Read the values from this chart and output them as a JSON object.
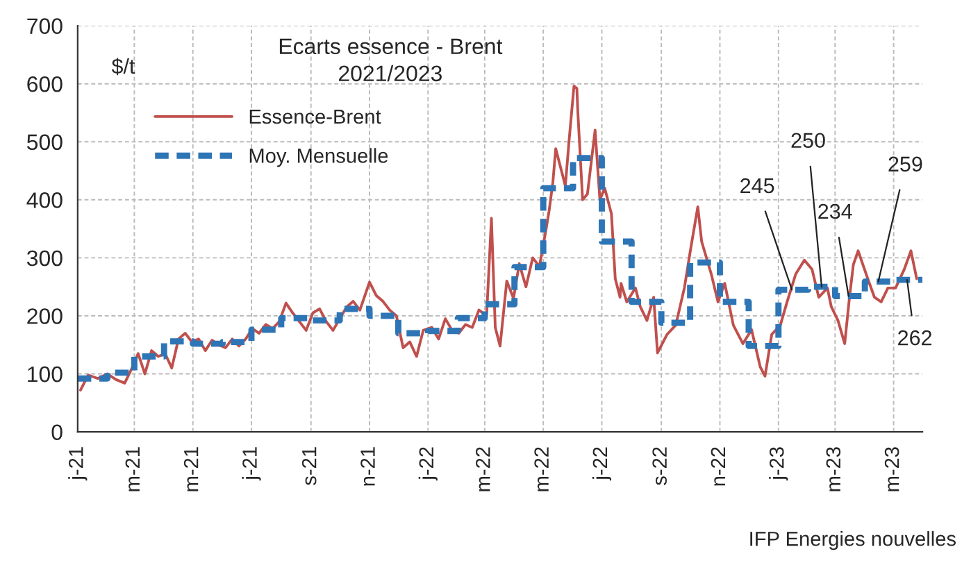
{
  "chart_data": {
    "type": "line",
    "title": "Ecarts essence - Brent\n2021/2023",
    "ylabel": "$/t",
    "xlim": [
      "2021-01-01",
      "2023-05-31"
    ],
    "xticks": [
      {
        "value": "2021-01-01",
        "label": "j-21"
      },
      {
        "value": "2021-03-01",
        "label": "m-21"
      },
      {
        "value": "2021-05-01",
        "label": "m-21"
      },
      {
        "value": "2021-07-01",
        "label": "j-21"
      },
      {
        "value": "2021-09-01",
        "label": "s-21"
      },
      {
        "value": "2021-11-01",
        "label": "n-21"
      },
      {
        "value": "2022-01-01",
        "label": "j-22"
      },
      {
        "value": "2022-03-01",
        "label": "m-22"
      },
      {
        "value": "2022-05-01",
        "label": "m-22"
      },
      {
        "value": "2022-07-01",
        "label": "j-22"
      },
      {
        "value": "2022-09-01",
        "label": "s-22"
      },
      {
        "value": "2022-11-01",
        "label": "n-22"
      },
      {
        "value": "2023-01-01",
        "label": "j-23"
      },
      {
        "value": "2023-03-01",
        "label": "m-23"
      },
      {
        "value": "2023-05-01",
        "label": "m-23"
      }
    ],
    "ylim": [
      0,
      700
    ],
    "yticks": [
      0,
      100,
      200,
      300,
      400,
      500,
      600,
      700
    ],
    "grid": true,
    "legend": "top left",
    "series": [
      {
        "name": "Essence-Brent",
        "color": "#c0504d",
        "line_style": "solid",
        "x": [
          "2021-01-04",
          "2021-01-12",
          "2021-01-22",
          "2021-02-01",
          "2021-02-10",
          "2021-02-19",
          "2021-02-26",
          "2021-03-05",
          "2021-03-12",
          "2021-03-19",
          "2021-03-26",
          "2021-04-02",
          "2021-04-09",
          "2021-04-16",
          "2021-04-23",
          "2021-04-30",
          "2021-05-07",
          "2021-05-14",
          "2021-05-21",
          "2021-05-28",
          "2021-06-04",
          "2021-06-11",
          "2021-06-18",
          "2021-06-25",
          "2021-07-02",
          "2021-07-09",
          "2021-07-16",
          "2021-07-23",
          "2021-07-30",
          "2021-08-06",
          "2021-08-13",
          "2021-08-20",
          "2021-08-27",
          "2021-09-03",
          "2021-09-10",
          "2021-09-17",
          "2021-09-24",
          "2021-10-01",
          "2021-10-08",
          "2021-10-15",
          "2021-10-22",
          "2021-11-01",
          "2021-11-08",
          "2021-11-15",
          "2021-11-22",
          "2021-11-29",
          "2021-12-06",
          "2021-12-13",
          "2021-12-20",
          "2021-12-27",
          "2022-01-05",
          "2022-01-12",
          "2022-01-19",
          "2022-01-26",
          "2022-02-02",
          "2022-02-09",
          "2022-02-16",
          "2022-02-23",
          "2022-03-03",
          "2022-03-08",
          "2022-03-12",
          "2022-03-17",
          "2022-03-24",
          "2022-03-31",
          "2022-04-06",
          "2022-04-13",
          "2022-04-20",
          "2022-04-27",
          "2022-05-04",
          "2022-05-07",
          "2022-05-11",
          "2022-05-14",
          "2022-05-24",
          "2022-05-28",
          "2022-06-02",
          "2022-06-05",
          "2022-06-06",
          "2022-06-11",
          "2022-06-16",
          "2022-06-24",
          "2022-06-29",
          "2022-07-04",
          "2022-07-11",
          "2022-07-15",
          "2022-07-20",
          "2022-07-21",
          "2022-07-27",
          "2022-08-05",
          "2022-08-10",
          "2022-08-17",
          "2022-08-24",
          "2022-08-28",
          "2022-09-07",
          "2022-09-16",
          "2022-09-25",
          "2022-10-02",
          "2022-10-09",
          "2022-10-13",
          "2022-10-23",
          "2022-10-30",
          "2022-11-06",
          "2022-11-15",
          "2022-11-25",
          "2022-12-04",
          "2022-12-13",
          "2022-12-18",
          "2022-12-25",
          "2023-01-03",
          "2023-01-10",
          "2023-01-19",
          "2023-01-28",
          "2023-02-05",
          "2023-02-12",
          "2023-02-21",
          "2023-02-25",
          "2023-03-04",
          "2023-03-11",
          "2023-03-16",
          "2023-03-20",
          "2023-03-25",
          "2023-04-04",
          "2023-04-11",
          "2023-04-18",
          "2023-04-25",
          "2023-05-03",
          "2023-05-12",
          "2023-05-19",
          "2023-05-25"
        ],
        "values": [
          72,
          98,
          92,
          100,
          90,
          84,
          108,
          135,
          100,
          140,
          130,
          135,
          110,
          160,
          170,
          155,
          160,
          140,
          158,
          150,
          145,
          160,
          148,
          160,
          178,
          170,
          185,
          178,
          190,
          222,
          205,
          190,
          175,
          205,
          212,
          190,
          175,
          195,
          215,
          225,
          210,
          258,
          235,
          225,
          210,
          200,
          145,
          155,
          130,
          175,
          180,
          160,
          195,
          175,
          170,
          185,
          180,
          210,
          200,
          368,
          180,
          148,
          260,
          230,
          290,
          250,
          300,
          285,
          350,
          380,
          430,
          488,
          424,
          504,
          596,
          592,
          552,
          400,
          410,
          520,
          400,
          420,
          376,
          264,
          232,
          256,
          224,
          248,
          216,
          192,
          232,
          136,
          168,
          184,
          248,
          320,
          388,
          328,
          272,
          224,
          256,
          184,
          152,
          176,
          112,
          96,
          168,
          184,
          224,
          272,
          296,
          280,
          232,
          248,
          216,
          192,
          152,
          232,
          288,
          312,
          264,
          232,
          224,
          248,
          248,
          280,
          312,
          264
        ]
      },
      {
        "name": "Moy. Mensuelle",
        "color": "#2e75b6",
        "type": "step",
        "line_style": "dashed",
        "x": [
          "2021-01-01",
          "2021-02-01",
          "2021-03-01",
          "2021-04-01",
          "2021-05-01",
          "2021-06-01",
          "2021-07-01",
          "2021-08-01",
          "2021-09-01",
          "2021-10-01",
          "2021-11-01",
          "2021-12-01",
          "2022-01-01",
          "2022-02-01",
          "2022-03-01",
          "2022-04-01",
          "2022-05-01",
          "2022-06-01",
          "2022-07-01",
          "2022-08-01",
          "2022-09-01",
          "2022-10-01",
          "2022-11-01",
          "2022-12-01",
          "2023-01-01",
          "2023-02-01",
          "2023-03-01",
          "2023-04-01",
          "2023-05-01",
          "2023-05-31"
        ],
        "values": [
          92,
          102,
          130,
          156,
          152,
          155,
          176,
          196,
          192,
          212,
          200,
          170,
          174,
          196,
          220,
          284,
          420,
          472,
          328,
          224,
          188,
          292,
          224,
          148,
          245,
          250,
          234,
          259,
          262,
          262
        ]
      }
    ],
    "annotations": [
      {
        "text": "245",
        "x": "2023-01-15",
        "y": 245
      },
      {
        "text": "250",
        "x": "2023-02-15",
        "y": 250
      },
      {
        "text": "234",
        "x": "2023-03-15",
        "y": 234
      },
      {
        "text": "259",
        "x": "2023-04-15",
        "y": 259
      },
      {
        "text": "262",
        "x": "2023-05-15",
        "y": 262
      },
      "IFP Energies nouvelles"
    ]
  }
}
